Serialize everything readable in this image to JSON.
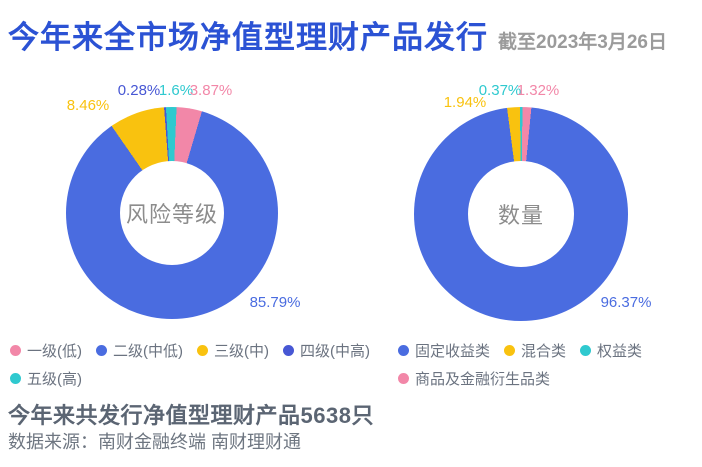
{
  "header": {
    "title": "今年来全市场净值型理财产品发行",
    "subtitle": "截至2023年3月26日"
  },
  "colors": {
    "title_blue": "#2b52d4",
    "subtitle_gray": "#9b9b9b",
    "blue": "#4a6ce0",
    "yellow": "#f9c20f",
    "cyan": "#2fc9cf",
    "pink": "#f287a8",
    "dark_blue": "#4757d4"
  },
  "chart_data": [
    {
      "type": "pie",
      "subtype": "donut",
      "title": "风险等级",
      "legend_position": "bottom",
      "start_angle_deg": -4.3,
      "slices": [
        {
          "label": "四级(中高)",
          "value": 0.28,
          "display": "0.28%",
          "color": "#4757d4"
        },
        {
          "label": "五级(高)",
          "value": 1.6,
          "display": "1.6%",
          "color": "#2fc9cf"
        },
        {
          "label": "一级(低)",
          "value": 3.87,
          "display": "3.87%",
          "color": "#f287a8"
        },
        {
          "label": "二级(中低)",
          "value": 85.79,
          "display": "85.79%",
          "color": "#4a6ce0"
        },
        {
          "label": "三级(中)",
          "value": 8.46,
          "display": "8.46%",
          "color": "#f9c20f"
        }
      ]
    },
    {
      "type": "pie",
      "subtype": "donut",
      "title": "数量",
      "legend_position": "bottom",
      "start_angle_deg": -7.5,
      "slices": [
        {
          "label": "混合类",
          "value": 1.94,
          "display": "1.94%",
          "color": "#f9c20f"
        },
        {
          "label": "权益类",
          "value": 0.37,
          "display": "0.37%",
          "color": "#2fc9cf"
        },
        {
          "label": "商品及金融衍生品类",
          "value": 1.32,
          "display": "1.32%",
          "color": "#f287a8"
        },
        {
          "label": "固定收益类",
          "value": 96.37,
          "display": "96.37%",
          "color": "#4a6ce0"
        }
      ]
    }
  ],
  "footer": {
    "summary": "今年来共发行净值型理财产品5638只",
    "source": "数据来源：南财金融终端 南财理财通"
  }
}
